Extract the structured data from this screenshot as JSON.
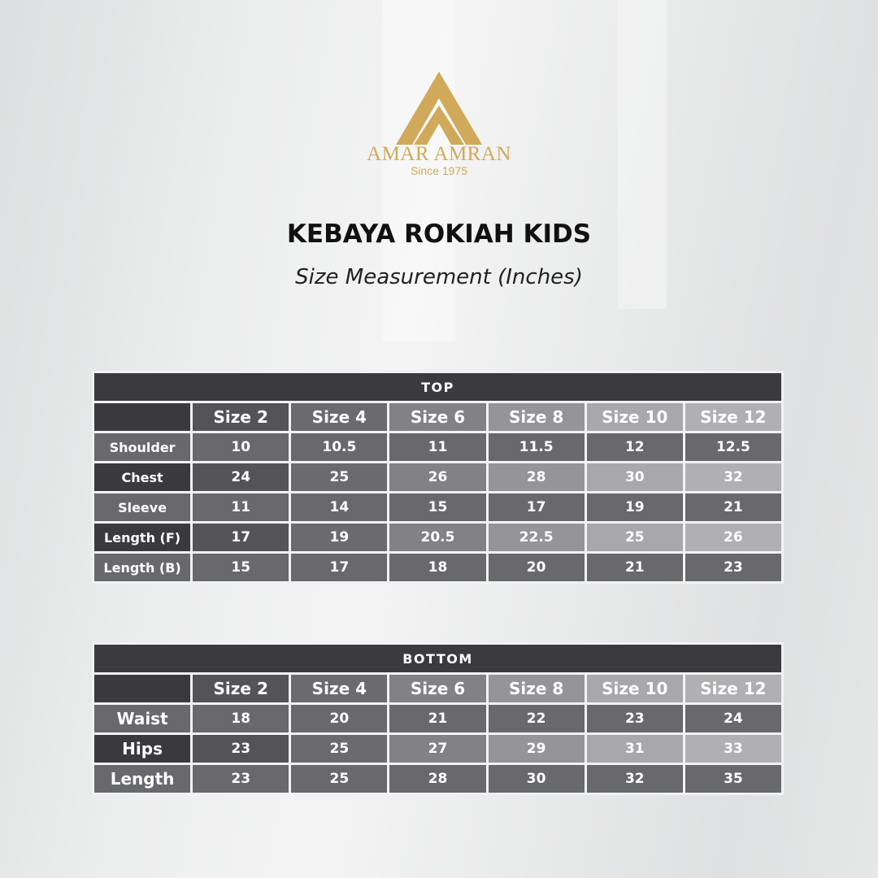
{
  "brand": {
    "name": "AMAR AMRAN",
    "tagline": "Since 1975",
    "color": "#d0a95a"
  },
  "title": "KEBAYA ROKIAH KIDS",
  "subtitle": "Size Measurement (Inches)",
  "top": {
    "heading": "TOP",
    "sizes": [
      "Size 2",
      "Size 4",
      "Size 6",
      "Size 8",
      "Size 10",
      "Size 12"
    ],
    "rows": [
      {
        "label": "Shoulder",
        "values": [
          "10",
          "10.5",
          "11",
          "11.5",
          "12",
          "12.5"
        ]
      },
      {
        "label": "Chest",
        "values": [
          "24",
          "25",
          "26",
          "28",
          "30",
          "32"
        ]
      },
      {
        "label": "Sleeve",
        "values": [
          "11",
          "14",
          "15",
          "17",
          "19",
          "21"
        ]
      },
      {
        "label": "Length (F)",
        "values": [
          "17",
          "19",
          "20.5",
          "22.5",
          "25",
          "26"
        ]
      },
      {
        "label": "Length (B)",
        "values": [
          "15",
          "17",
          "18",
          "20",
          "21",
          "23"
        ]
      }
    ]
  },
  "bottom": {
    "heading": "BOTTOM",
    "sizes": [
      "Size 2",
      "Size 4",
      "Size 6",
      "Size 8",
      "Size 10",
      "Size 12"
    ],
    "rows": [
      {
        "label": "Waist",
        "values": [
          "18",
          "20",
          "21",
          "22",
          "23",
          "24"
        ]
      },
      {
        "label": "Hips",
        "values": [
          "23",
          "25",
          "27",
          "29",
          "31",
          "33"
        ]
      },
      {
        "label": "Length",
        "values": [
          "23",
          "25",
          "28",
          "30",
          "32",
          "35"
        ]
      }
    ]
  }
}
